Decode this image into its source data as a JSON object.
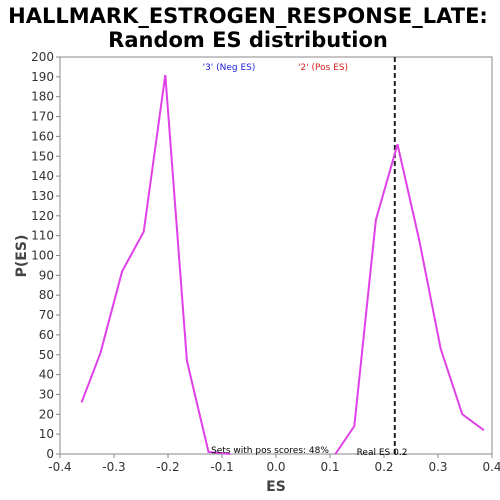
{
  "chart_data": {
    "type": "line",
    "title_line1": "HALLMARK_ESTROGEN_RESPONSE_LATE:",
    "title_line2": "Random ES distribution",
    "xlabel": "ES",
    "ylabel": "P(ES)",
    "xlim": [
      -0.4,
      0.4
    ],
    "ylim": [
      0,
      200
    ],
    "xticks": [
      -0.4,
      -0.3,
      -0.2,
      -0.1,
      0.0,
      0.1,
      0.2,
      0.3,
      0.4
    ],
    "xtick_labels": [
      "-0.4",
      "-0.3",
      "-0.2",
      "-0.1",
      "0.0",
      "0.1",
      "0.2",
      "0.3",
      "0.4"
    ],
    "yticks": [
      0,
      10,
      20,
      30,
      40,
      50,
      60,
      70,
      80,
      90,
      100,
      110,
      120,
      130,
      140,
      150,
      160,
      170,
      180,
      190,
      200
    ],
    "grid": false,
    "legend": [
      {
        "label": "'3' (Neg ES)",
        "color": "#2222dd"
      },
      {
        "label": "'2' (Pos ES)",
        "color": "#dd2222"
      }
    ],
    "line_color": "#e040e8",
    "series": [
      {
        "values": [
          {
            "x": -0.36,
            "y": 26
          },
          {
            "x": -0.325,
            "y": 51
          },
          {
            "x": -0.285,
            "y": 92
          },
          {
            "x": -0.245,
            "y": 112
          },
          {
            "x": -0.205,
            "y": 191
          },
          {
            "x": -0.165,
            "y": 47
          },
          {
            "x": -0.125,
            "y": 1
          },
          {
            "x": -0.085,
            "y": 0
          }
        ]
      },
      {
        "values": [
          {
            "x": 0.11,
            "y": 0
          },
          {
            "x": 0.145,
            "y": 14
          },
          {
            "x": 0.185,
            "y": 118
          },
          {
            "x": 0.225,
            "y": 156
          },
          {
            "x": 0.265,
            "y": 108
          },
          {
            "x": 0.305,
            "y": 53
          },
          {
            "x": 0.345,
            "y": 20
          },
          {
            "x": 0.385,
            "y": 12
          }
        ]
      }
    ],
    "real_es": 0.22,
    "annotation_pos_scores": "Sets with pos scores: 48%",
    "annotation_real_es": "Real ES 0.2"
  }
}
